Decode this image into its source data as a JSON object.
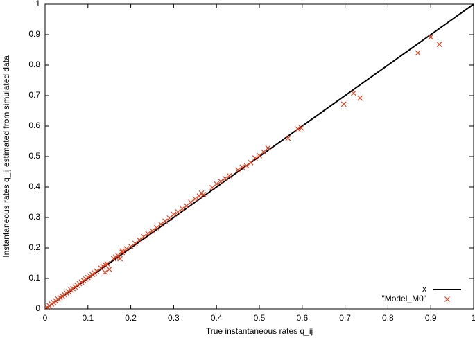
{
  "chart_data": {
    "type": "scatter",
    "xlabel": "True instantaneous rates q_ij",
    "ylabel": "Instantaneous rates q_ij estimated from simulated data",
    "xlim": [
      0,
      1
    ],
    "ylim": [
      0,
      1
    ],
    "xticks": [
      0,
      0.1,
      0.2,
      0.3,
      0.4,
      0.5,
      0.6,
      0.7,
      0.8,
      0.9,
      1
    ],
    "yticks": [
      0,
      0.1,
      0.2,
      0.3,
      0.4,
      0.5,
      0.6,
      0.7,
      0.8,
      0.9,
      1
    ],
    "grid": false,
    "legend": "bottom-right",
    "series": [
      {
        "name": "x",
        "kind": "line",
        "color": "#000000",
        "x": [
          0,
          1
        ],
        "values": [
          0,
          1
        ]
      },
      {
        "name": "\"Model_M0\"",
        "kind": "points",
        "color": "#e8401e",
        "x": [
          0.005,
          0.01,
          0.015,
          0.02,
          0.025,
          0.03,
          0.035,
          0.04,
          0.045,
          0.05,
          0.055,
          0.06,
          0.065,
          0.07,
          0.075,
          0.08,
          0.085,
          0.09,
          0.095,
          0.1,
          0.105,
          0.11,
          0.115,
          0.12,
          0.13,
          0.135,
          0.14,
          0.14,
          0.145,
          0.15,
          0.16,
          0.165,
          0.17,
          0.175,
          0.18,
          0.18,
          0.19,
          0.2,
          0.21,
          0.22,
          0.23,
          0.24,
          0.25,
          0.26,
          0.27,
          0.28,
          0.29,
          0.3,
          0.31,
          0.32,
          0.33,
          0.34,
          0.35,
          0.36,
          0.365,
          0.37,
          0.39,
          0.4,
          0.41,
          0.42,
          0.43,
          0.45,
          0.46,
          0.47,
          0.48,
          0.49,
          0.5,
          0.51,
          0.52,
          0.567,
          0.59,
          0.598,
          0.697,
          0.72,
          0.735,
          0.87,
          0.9,
          0.92
        ],
        "values": [
          0.005,
          0.01,
          0.016,
          0.021,
          0.026,
          0.032,
          0.037,
          0.042,
          0.047,
          0.052,
          0.057,
          0.062,
          0.067,
          0.072,
          0.077,
          0.083,
          0.088,
          0.093,
          0.098,
          0.103,
          0.108,
          0.113,
          0.118,
          0.124,
          0.134,
          0.14,
          0.145,
          0.12,
          0.148,
          0.13,
          0.165,
          0.17,
          0.175,
          0.165,
          0.185,
          0.19,
          0.197,
          0.205,
          0.215,
          0.226,
          0.237,
          0.247,
          0.256,
          0.266,
          0.278,
          0.288,
          0.298,
          0.31,
          0.318,
          0.329,
          0.338,
          0.35,
          0.361,
          0.37,
          0.38,
          0.375,
          0.398,
          0.41,
          0.418,
          0.428,
          0.437,
          0.456,
          0.465,
          0.47,
          0.48,
          0.495,
          0.503,
          0.515,
          0.528,
          0.56,
          0.59,
          0.594,
          0.672,
          0.708,
          0.692,
          0.84,
          0.892,
          0.868
        ]
      }
    ]
  }
}
